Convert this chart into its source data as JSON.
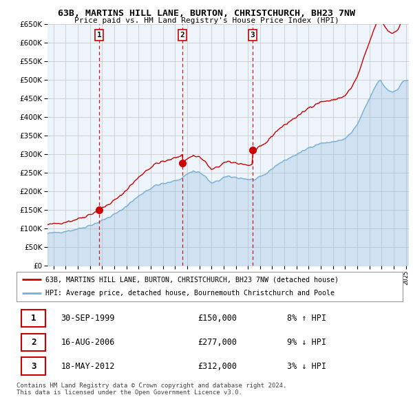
{
  "title": "63B, MARTINS HILL LANE, BURTON, CHRISTCHURCH, BH23 7NW",
  "subtitle": "Price paid vs. HM Land Registry's House Price Index (HPI)",
  "ylim": [
    0,
    650000
  ],
  "yticks": [
    0,
    50000,
    100000,
    150000,
    200000,
    250000,
    300000,
    350000,
    400000,
    450000,
    500000,
    550000,
    600000,
    650000
  ],
  "sale_dates": [
    1999.75,
    2006.62,
    2012.38
  ],
  "sale_prices": [
    150000,
    277000,
    312000
  ],
  "sale_labels": [
    "1",
    "2",
    "3"
  ],
  "red_line_color": "#cc0000",
  "blue_line_color": "#7ab0d4",
  "blue_fill_color": "#ddeeff",
  "grid_color": "#cccccc",
  "bg_color": "#eef4fb",
  "plot_bg_color": "#eef4fb",
  "legend_label_red": "63B, MARTINS HILL LANE, BURTON, CHRISTCHURCH, BH23 7NW (detached house)",
  "legend_label_blue": "HPI: Average price, detached house, Bournemouth Christchurch and Poole",
  "transactions": [
    {
      "num": "1",
      "date": "30-SEP-1999",
      "price": "£150,000",
      "hpi": "8% ↑ HPI"
    },
    {
      "num": "2",
      "date": "16-AUG-2006",
      "price": "£277,000",
      "hpi": "9% ↓ HPI"
    },
    {
      "num": "3",
      "date": "18-MAY-2012",
      "price": "£312,000",
      "hpi": "3% ↓ HPI"
    }
  ],
  "footer1": "Contains HM Land Registry data © Crown copyright and database right 2024.",
  "footer2": "This data is licensed under the Open Government Licence v3.0.",
  "xmin": 1995.5,
  "xmax": 2025.25
}
